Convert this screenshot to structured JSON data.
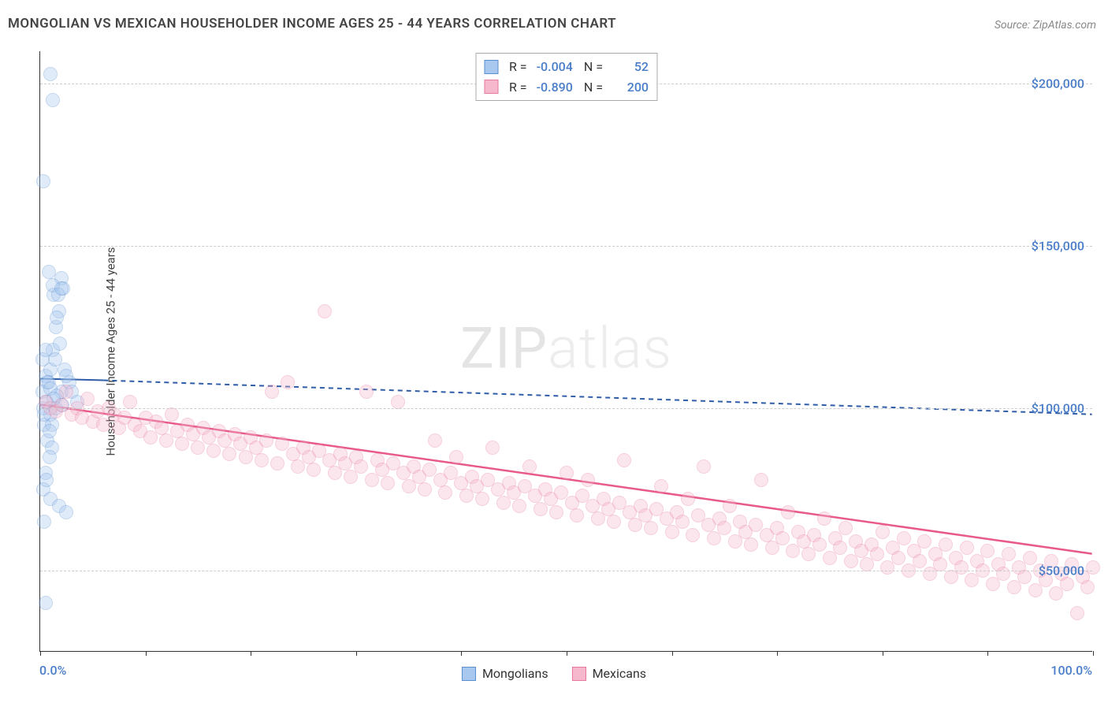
{
  "title": "MONGOLIAN VS MEXICAN HOUSEHOLDER INCOME AGES 25 - 44 YEARS CORRELATION CHART",
  "source_prefix": "Source: ",
  "source_name": "ZipAtlas.com",
  "watermark_a": "ZIP",
  "watermark_b": "atlas",
  "chart": {
    "type": "scatter",
    "background_color": "#ffffff",
    "grid_color": "#cccccc",
    "axis_color": "#333333",
    "xlim": [
      0,
      100
    ],
    "ylim": [
      25000,
      210000
    ],
    "x_tick_positions": [
      0,
      10,
      20,
      30,
      40,
      50,
      60,
      70,
      80,
      90,
      100
    ],
    "y_gridlines": [
      50000,
      100000,
      150000,
      200000
    ],
    "y_tick_labels": [
      "$50,000",
      "$100,000",
      "$150,000",
      "$200,000"
    ],
    "y_tick_color": "#4a7ec9",
    "x_left_label": "0.0%",
    "x_right_label": "100.0%",
    "y_axis_title": "Householder Income Ages 25 - 44 years",
    "marker_radius": 9,
    "marker_opacity": 0.35,
    "marker_stroke_opacity": 0.9,
    "marker_stroke_width": 1.2,
    "series": [
      {
        "name": "Mongolians",
        "legend_label": "Mongolians",
        "color_fill": "#a8c8f0",
        "color_stroke": "#5a8fd0",
        "R_label": "R =",
        "R": "-0.004",
        "N_label": "N =",
        "N": "52",
        "trend": {
          "solid_to_x": 6,
          "y_start": 109000,
          "y_end_solid": 108500,
          "y_end": 98000,
          "color": "#2f5da8",
          "width": 2,
          "dash": "6 5"
        },
        "points": [
          [
            0.2,
            105000
          ],
          [
            0.3,
            100000
          ],
          [
            0.5,
            110000
          ],
          [
            0.4,
            95000
          ],
          [
            0.6,
            102000
          ],
          [
            0.8,
            108000
          ],
          [
            1.0,
            112000
          ],
          [
            0.7,
            90000
          ],
          [
            1.2,
            118000
          ],
          [
            1.5,
            125000
          ],
          [
            1.0,
            98000
          ],
          [
            1.3,
            135000
          ],
          [
            1.8,
            130000
          ],
          [
            1.1,
            88000
          ],
          [
            2.0,
            140000
          ],
          [
            1.6,
            128000
          ],
          [
            2.2,
            137000
          ],
          [
            0.9,
            85000
          ],
          [
            0.5,
            80000
          ],
          [
            1.4,
            115000
          ],
          [
            0.3,
            75000
          ],
          [
            0.6,
            78000
          ],
          [
            1.0,
            72000
          ],
          [
            1.8,
            70000
          ],
          [
            2.5,
            68000
          ],
          [
            0.4,
            65000
          ],
          [
            1.2,
            138000
          ],
          [
            0.8,
            142000
          ],
          [
            2.0,
            105000
          ],
          [
            1.5,
            100000
          ],
          [
            1.1,
            95000
          ],
          [
            2.8,
            108000
          ],
          [
            0.2,
            115000
          ],
          [
            0.5,
            118000
          ],
          [
            1.9,
            120000
          ],
          [
            2.3,
            112000
          ],
          [
            0.7,
            108000
          ],
          [
            1.0,
            106000
          ],
          [
            1.6,
            104000
          ],
          [
            2.1,
            101000
          ],
          [
            0.3,
            170000
          ],
          [
            1.0,
            203000
          ],
          [
            1.2,
            195000
          ],
          [
            2.5,
            110000
          ],
          [
            3.0,
            105000
          ],
          [
            3.5,
            102000
          ],
          [
            0.4,
            98000
          ],
          [
            0.9,
            93000
          ],
          [
            1.7,
            135000
          ],
          [
            2.0,
            137000
          ],
          [
            0.5,
            40000
          ],
          [
            1.3,
            103000
          ]
        ]
      },
      {
        "name": "Mexicans",
        "legend_label": "Mexicans",
        "color_fill": "#f5b8cc",
        "color_stroke": "#e878a0",
        "R_label": "R =",
        "R": "-0.890",
        "N_label": "N =",
        "N": "200",
        "trend": {
          "solid_to_x": 100,
          "y_start": 101000,
          "y_end_solid": 55000,
          "y_end": 55000,
          "color": "#e85a8a",
          "width": 2.5,
          "dash": ""
        },
        "points": [
          [
            0.5,
            102000
          ],
          [
            1,
            100000
          ],
          [
            1.5,
            99000
          ],
          [
            2,
            101000
          ],
          [
            2.5,
            105000
          ],
          [
            3,
            98000
          ],
          [
            3.5,
            100000
          ],
          [
            4,
            97000
          ],
          [
            4.5,
            103000
          ],
          [
            5,
            96000
          ],
          [
            5.5,
            99000
          ],
          [
            6,
            95000
          ],
          [
            6.5,
            100000
          ],
          [
            7,
            98000
          ],
          [
            7.5,
            94000
          ],
          [
            8,
            97000
          ],
          [
            8.5,
            102000
          ],
          [
            9,
            95000
          ],
          [
            9.5,
            93000
          ],
          [
            10,
            97000
          ],
          [
            10.5,
            91000
          ],
          [
            11,
            96000
          ],
          [
            11.5,
            94000
          ],
          [
            12,
            90000
          ],
          [
            12.5,
            98000
          ],
          [
            13,
            93000
          ],
          [
            13.5,
            89000
          ],
          [
            14,
            95000
          ],
          [
            14.5,
            92000
          ],
          [
            15,
            88000
          ],
          [
            15.5,
            94000
          ],
          [
            16,
            91000
          ],
          [
            16.5,
            87000
          ],
          [
            17,
            93000
          ],
          [
            17.5,
            90000
          ],
          [
            18,
            86000
          ],
          [
            18.5,
            92000
          ],
          [
            19,
            89000
          ],
          [
            19.5,
            85000
          ],
          [
            20,
            91000
          ],
          [
            20.5,
            88000
          ],
          [
            21,
            84000
          ],
          [
            21.5,
            90000
          ],
          [
            22,
            105000
          ],
          [
            22.5,
            83000
          ],
          [
            23,
            89000
          ],
          [
            23.5,
            108000
          ],
          [
            24,
            86000
          ],
          [
            24.5,
            82000
          ],
          [
            25,
            88000
          ],
          [
            25.5,
            85000
          ],
          [
            26,
            81000
          ],
          [
            26.5,
            87000
          ],
          [
            27,
            130000
          ],
          [
            27.5,
            84000
          ],
          [
            28,
            80000
          ],
          [
            28.5,
            86000
          ],
          [
            29,
            83000
          ],
          [
            29.5,
            79000
          ],
          [
            30,
            85000
          ],
          [
            30.5,
            82000
          ],
          [
            31,
            105000
          ],
          [
            31.5,
            78000
          ],
          [
            32,
            84000
          ],
          [
            32.5,
            81000
          ],
          [
            33,
            77000
          ],
          [
            33.5,
            83000
          ],
          [
            34,
            102000
          ],
          [
            34.5,
            80000
          ],
          [
            35,
            76000
          ],
          [
            35.5,
            82000
          ],
          [
            36,
            79000
          ],
          [
            36.5,
            75000
          ],
          [
            37,
            81000
          ],
          [
            37.5,
            90000
          ],
          [
            38,
            78000
          ],
          [
            38.5,
            74000
          ],
          [
            39,
            80000
          ],
          [
            39.5,
            85000
          ],
          [
            40,
            77000
          ],
          [
            40.5,
            73000
          ],
          [
            41,
            79000
          ],
          [
            41.5,
            76000
          ],
          [
            42,
            72000
          ],
          [
            42.5,
            78000
          ],
          [
            43,
            88000
          ],
          [
            43.5,
            75000
          ],
          [
            44,
            71000
          ],
          [
            44.5,
            77000
          ],
          [
            45,
            74000
          ],
          [
            45.5,
            70000
          ],
          [
            46,
            76000
          ],
          [
            46.5,
            82000
          ],
          [
            47,
            73000
          ],
          [
            47.5,
            69000
          ],
          [
            48,
            75000
          ],
          [
            48.5,
            72000
          ],
          [
            49,
            68000
          ],
          [
            49.5,
            74000
          ],
          [
            50,
            80000
          ],
          [
            50.5,
            71000
          ],
          [
            51,
            67000
          ],
          [
            51.5,
            73000
          ],
          [
            52,
            78000
          ],
          [
            52.5,
            70000
          ],
          [
            53,
            66000
          ],
          [
            53.5,
            72000
          ],
          [
            54,
            69000
          ],
          [
            54.5,
            65000
          ],
          [
            55,
            71000
          ],
          [
            55.5,
            84000
          ],
          [
            56,
            68000
          ],
          [
            56.5,
            64000
          ],
          [
            57,
            70000
          ],
          [
            57.5,
            67000
          ],
          [
            58,
            63000
          ],
          [
            58.5,
            69000
          ],
          [
            59,
            76000
          ],
          [
            59.5,
            66000
          ],
          [
            60,
            62000
          ],
          [
            60.5,
            68000
          ],
          [
            61,
            65000
          ],
          [
            61.5,
            72000
          ],
          [
            62,
            61000
          ],
          [
            62.5,
            67000
          ],
          [
            63,
            82000
          ],
          [
            63.5,
            64000
          ],
          [
            64,
            60000
          ],
          [
            64.5,
            66000
          ],
          [
            65,
            63000
          ],
          [
            65.5,
            70000
          ],
          [
            66,
            59000
          ],
          [
            66.5,
            65000
          ],
          [
            67,
            62000
          ],
          [
            67.5,
            58000
          ],
          [
            68,
            64000
          ],
          [
            68.5,
            78000
          ],
          [
            69,
            61000
          ],
          [
            69.5,
            57000
          ],
          [
            70,
            63000
          ],
          [
            70.5,
            60000
          ],
          [
            71,
            68000
          ],
          [
            71.5,
            56000
          ],
          [
            72,
            62000
          ],
          [
            72.5,
            59000
          ],
          [
            73,
            55000
          ],
          [
            73.5,
            61000
          ],
          [
            74,
            58000
          ],
          [
            74.5,
            66000
          ],
          [
            75,
            54000
          ],
          [
            75.5,
            60000
          ],
          [
            76,
            57000
          ],
          [
            76.5,
            63000
          ],
          [
            77,
            53000
          ],
          [
            77.5,
            59000
          ],
          [
            78,
            56000
          ],
          [
            78.5,
            52000
          ],
          [
            79,
            58000
          ],
          [
            79.5,
            55000
          ],
          [
            80,
            62000
          ],
          [
            80.5,
            51000
          ],
          [
            81,
            57000
          ],
          [
            81.5,
            54000
          ],
          [
            82,
            60000
          ],
          [
            82.5,
            50000
          ],
          [
            83,
            56000
          ],
          [
            83.5,
            53000
          ],
          [
            84,
            59000
          ],
          [
            84.5,
            49000
          ],
          [
            85,
            55000
          ],
          [
            85.5,
            52000
          ],
          [
            86,
            58000
          ],
          [
            86.5,
            48000
          ],
          [
            87,
            54000
          ],
          [
            87.5,
            51000
          ],
          [
            88,
            57000
          ],
          [
            88.5,
            47000
          ],
          [
            89,
            53000
          ],
          [
            89.5,
            50000
          ],
          [
            90,
            56000
          ],
          [
            90.5,
            46000
          ],
          [
            91,
            52000
          ],
          [
            91.5,
            49000
          ],
          [
            92,
            55000
          ],
          [
            92.5,
            45000
          ],
          [
            93,
            51000
          ],
          [
            93.5,
            48000
          ],
          [
            94,
            54000
          ],
          [
            94.5,
            44000
          ],
          [
            95,
            50000
          ],
          [
            95.5,
            47000
          ],
          [
            96,
            53000
          ],
          [
            96.5,
            43000
          ],
          [
            97,
            49000
          ],
          [
            97.5,
            46000
          ],
          [
            98,
            52000
          ],
          [
            98.5,
            37000
          ],
          [
            99,
            48000
          ],
          [
            99.5,
            45000
          ],
          [
            100,
            51000
          ]
        ]
      }
    ]
  }
}
